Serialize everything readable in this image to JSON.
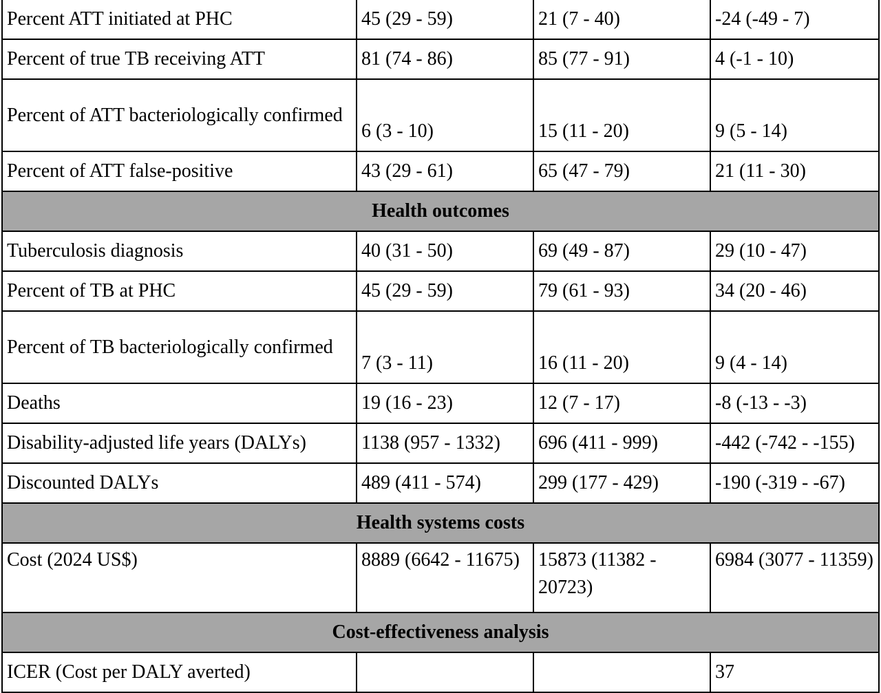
{
  "rows": [
    {
      "type": "row",
      "label": "Percent ATT initiated at PHC",
      "v1": "45 (29 - 59)",
      "v2": "21 (7 - 40)",
      "v3": "-24 (-49 - 7)"
    },
    {
      "type": "row",
      "label": "Percent of true TB receiving ATT",
      "v1": "81 (74 - 86)",
      "v2": "85 (77 - 91)",
      "v3": "4 (-1 - 10)"
    },
    {
      "type": "row",
      "label": "Percent of ATT bacteriologically confirmed",
      "v1": "6 (3 - 10)",
      "v2": "15 (11 - 20)",
      "v3": "9 (5 - 14)"
    },
    {
      "type": "row",
      "label": "Percent of ATT false-positive",
      "v1": "43 (29 - 61)",
      "v2": "65 (47 - 79)",
      "v3": "21 (11 - 30)"
    },
    {
      "type": "section",
      "label": "Health outcomes"
    },
    {
      "type": "row",
      "label": "Tuberculosis diagnosis",
      "v1": "40 (31 - 50)",
      "v2": "69 (49 - 87)",
      "v3": "29 (10 - 47)"
    },
    {
      "type": "row",
      "label": "Percent of TB at PHC",
      "v1": "45 (29 - 59)",
      "v2": "79 (61 - 93)",
      "v3": "34 (20 - 46)"
    },
    {
      "type": "row",
      "label": "Percent of TB bacteriologically confirmed",
      "v1": "7 (3 - 11)",
      "v2": "16 (11 - 20)",
      "v3": "9 (4 - 14)"
    },
    {
      "type": "row",
      "label": "Deaths",
      "v1": "19 (16 - 23)",
      "v2": "12 (7 - 17)",
      "v3": "-8 (-13 - -3)"
    },
    {
      "type": "row",
      "label": "Disability-adjusted life years (DALYs)",
      "v1": "1138 (957 - 1332)",
      "v2": "696 (411 - 999)",
      "v3": "-442 (-742 - -155)"
    },
    {
      "type": "row",
      "label": "Discounted DALYs",
      "v1": "489 (411 - 574)",
      "v2": "299 (177 - 429)",
      "v3": "-190 (-319 - -67)"
    },
    {
      "type": "section",
      "label": "Health systems costs"
    },
    {
      "type": "row",
      "label": "Cost (2024 US$)",
      "v1": "8889 (6642 - 11675)",
      "v2": "15873 (11382 - 20723)",
      "v3": "6984 (3077 - 11359)"
    },
    {
      "type": "section",
      "label": "Cost-effectiveness analysis"
    },
    {
      "type": "row",
      "label": "ICER (Cost per DALY averted)",
      "v1": "",
      "v2": "",
      "v3": "37"
    }
  ]
}
